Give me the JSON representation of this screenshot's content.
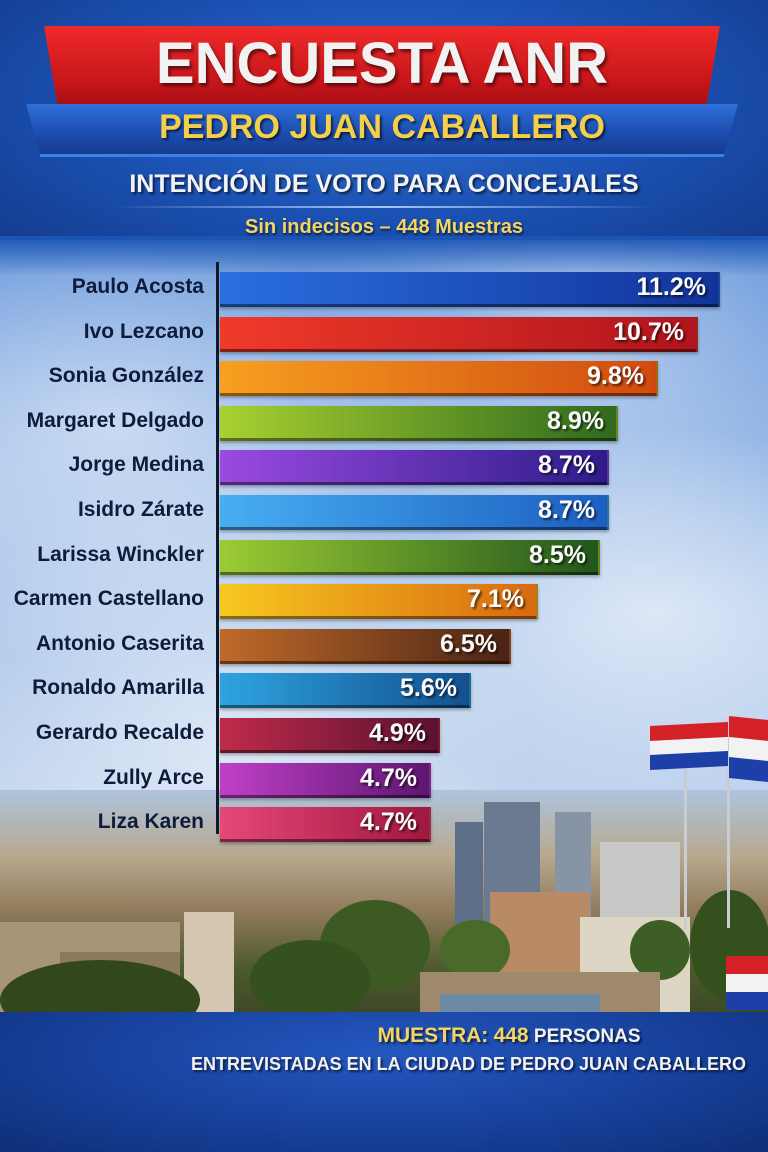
{
  "header": {
    "title": "ENCUESTA ANR",
    "subtitle": "PEDRO JUAN CABALLERO",
    "heading": "INTENCIÓN DE VOTO PARA CONCEJALES",
    "note": "Sin indecisos – 448 Muestras"
  },
  "chart_data": {
    "type": "bar",
    "orientation": "horizontal",
    "title": "INTENCIÓN DE VOTO PARA CONCEJALES",
    "subtitle": "Sin indecisos – 448 Muestras",
    "xlabel": "",
    "ylabel": "",
    "unit": "%",
    "grid": false,
    "legend": "none",
    "categories": [
      "Paulo Acosta",
      "Ivo Lezcano",
      "Sonia González",
      "Margaret Delgado",
      "Jorge Medina",
      "Isidro Zárate",
      "Larissa Winckler",
      "Carmen Castellano",
      "Antonio Caserita",
      "Ronaldo Amarilla",
      "Gerardo Recalde",
      "Zully Arce",
      "Liza Karen"
    ],
    "values": [
      11.2,
      10.7,
      9.8,
      8.9,
      8.7,
      8.7,
      8.5,
      7.1,
      6.5,
      5.6,
      4.9,
      4.7,
      4.7
    ],
    "labels": [
      "11.2%",
      "10.7%",
      "9.8%",
      "8.9%",
      "8.7%",
      "8.7%",
      "8.5%",
      "7.1%",
      "6.5%",
      "5.6%",
      "4.9%",
      "4.7%",
      "4.7%"
    ],
    "colors": [
      [
        "#2a6fe0",
        "#12349a"
      ],
      [
        "#f03a2a",
        "#b0141c"
      ],
      [
        "#f8a020",
        "#d04a10"
      ],
      [
        "#a8d030",
        "#2f6a1e"
      ],
      [
        "#9a4ae0",
        "#2e1c8a"
      ],
      [
        "#48aef2",
        "#1c5fc0"
      ],
      [
        "#9ccc34",
        "#21561c"
      ],
      [
        "#f8c820",
        "#d86a10"
      ],
      [
        "#c06a2a",
        "#4a2414"
      ],
      [
        "#2ea4e0",
        "#13508e"
      ],
      [
        "#c02a4a",
        "#5a1230"
      ],
      [
        "#c040c8",
        "#5e1670"
      ],
      [
        "#e64878",
        "#a0183e"
      ]
    ]
  },
  "footer": {
    "line1_prefix": "MUESTRA:",
    "line1_number": "448",
    "line1_suffix": "PERSONAS",
    "line2": "ENTREVISTADAS EN LA CIUDAD DE PEDRO JUAN CABALLERO"
  },
  "decor": {
    "flag_colors": [
      "#d42027",
      "#f2f2f2",
      "#1f3fa8"
    ]
  }
}
